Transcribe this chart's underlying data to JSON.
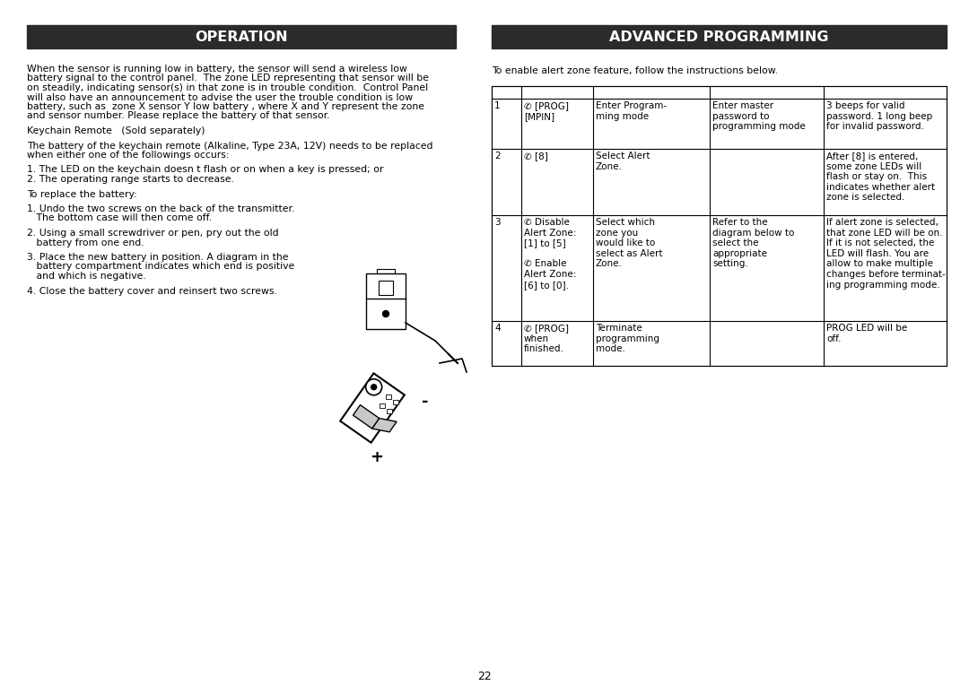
{
  "page_number": "22",
  "background_color": "#ffffff",
  "left_header": "OPERATION",
  "right_header": "ADVANCED PROGRAMMING",
  "header_bg": "#2b2b2b",
  "header_color": "#ffffff",
  "font_size_header": 11.5,
  "font_size_body": 7.8,
  "font_size_table": 7.5,
  "intro_text": "To enable alert zone feature, follow the instructions below.",
  "left_body_lines": [
    "When the sensor is running low in battery, the sensor will send a wireless low",
    "battery signal to the control panel.  The zone LED representing that sensor will be",
    "on steadily, indicating sensor(s) in that zone is in trouble condition.  Control Panel",
    "will also have an announcement to advise the user the trouble condition is low",
    "battery, such as  zone X sensor Y low battery , where X and Y represent the zone",
    "and sensor number. Please replace the battery of that sensor.",
    "",
    "Keychain Remote   (Sold separately)",
    "",
    "The battery of the keychain remote (Alkaline, Type 23A, 12V) needs to be replaced",
    "when either one of the followings occurs:",
    "",
    "1. The LED on the keychain doesn t flash or on when a key is pressed; or",
    "2. The operating range starts to decrease.",
    "",
    "To replace the battery:",
    "",
    "1. Undo the two screws on the back of the transmitter.",
    "   The bottom case will then come off.",
    "",
    "2. Using a small screwdriver or pen, pry out the old",
    "   battery from one end.",
    "",
    "3. Place the new battery in position. A diagram in the",
    "   battery compartment indicates which end is positive",
    "   and which is negative.",
    "",
    "4. Close the battery cover and reinsert two screws."
  ],
  "table_rows": [
    {
      "num": "1",
      "col2": "✆ [PROG]\n[MPIN]",
      "col3": "Enter Program-\nming mode",
      "col4": "Enter master\npassword to\nprogramming mode",
      "col5": "3 beeps for valid\npassword. 1 long beep\nfor invalid password."
    },
    {
      "num": "2",
      "col2": "✆ [8]",
      "col3": "Select Alert\nZone.",
      "col4": "",
      "col5": "After [8] is entered,\nsome zone LEDs will\nflash or stay on.  This\nindicates whether alert\nzone is selected."
    },
    {
      "num": "3",
      "col2": "✆ Disable\nAlert Zone:\n[1] to [5]\n\n✆ Enable\nAlert Zone:\n[6] to [0].",
      "col3": "Select which\nzone you\nwould like to\nselect as Alert\nZone.",
      "col4": "Refer to the\ndiagram below to\nselect the\nappropriate\nsetting.",
      "col5": "If alert zone is selected,\nthat zone LED will be on.\nIf it is not selected, the\nLED will flash. You are\nallow to make multiple\nchanges before terminat-\ning programming mode."
    },
    {
      "num": "4",
      "col2": "✆ [PROG]\nwhen\nfinished.",
      "col3": "Terminate\nprogramming\nmode.",
      "col4": "",
      "col5": "PROG LED will be\noff."
    }
  ]
}
